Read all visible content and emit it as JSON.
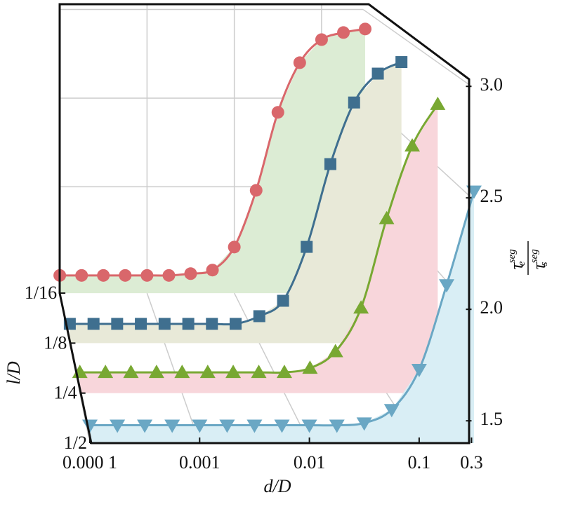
{
  "chart_data": {
    "type": "waterfall",
    "xlabel": "d/D",
    "zlabel": "l/D",
    "ylabel": {
      "top": "τ",
      "top_sub": "e",
      "top_sup": "seg",
      "bottom": "τ",
      "bottom_sub": "s",
      "bottom_sup": "seg"
    },
    "xscale": "log",
    "xlim": [
      0.0001,
      0.3
    ],
    "xticks": [
      {
        "value": 0.0001,
        "label": "0.000 1"
      },
      0.001,
      0.01,
      0.1,
      0.3
    ],
    "ylim": [
      1.4,
      3.0
    ],
    "yticks": [
      1.5,
      {
        "value": 2,
        "label": "2.0"
      },
      2.5,
      {
        "value": 3,
        "label": "3.0"
      }
    ],
    "zticks": [
      {
        "value": 0.0625,
        "label": "1/16"
      },
      {
        "value": 0.125,
        "label": "1/8"
      },
      {
        "value": 0.25,
        "label": "1/4"
      },
      {
        "value": 0.5,
        "label": "1/2"
      }
    ],
    "grid": true,
    "x": [
      0.0001,
      0.000178,
      0.000316,
      0.000562,
      0.001,
      0.00178,
      0.00316,
      0.00562,
      0.01,
      0.0178,
      0.0316,
      0.0562,
      0.1,
      0.178,
      0.316
    ],
    "series": [
      {
        "z": 0.0625,
        "color": "#d9676b",
        "fill": "#dcecd4",
        "marker": "circle",
        "values": [
          1.5,
          1.5,
          1.5,
          1.5,
          1.5,
          1.5,
          1.51,
          1.53,
          1.66,
          1.98,
          2.42,
          2.7,
          2.83,
          2.87,
          2.89
        ]
      },
      {
        "z": 0.125,
        "color": "#3f6f8f",
        "fill": "#e8e9d8",
        "marker": "square",
        "values": [
          1.5,
          1.5,
          1.5,
          1.5,
          1.5,
          1.5,
          1.5,
          1.5,
          1.54,
          1.62,
          1.9,
          2.33,
          2.65,
          2.8,
          2.86
        ]
      },
      {
        "z": 0.25,
        "color": "#78a832",
        "fill": "#f8d6db",
        "marker": "triangle-up",
        "values": [
          1.5,
          1.5,
          1.5,
          1.5,
          1.5,
          1.5,
          1.5,
          1.5,
          1.5,
          1.52,
          1.6,
          1.81,
          2.24,
          2.59,
          2.79
        ]
      },
      {
        "z": 0.5,
        "color": "#6aa7c4",
        "fill": "#d9eef5",
        "marker": "triangle-down",
        "values": [
          1.48,
          1.48,
          1.48,
          1.48,
          1.48,
          1.48,
          1.48,
          1.48,
          1.48,
          1.48,
          1.49,
          1.55,
          1.73,
          2.11,
          2.53
        ]
      }
    ]
  }
}
